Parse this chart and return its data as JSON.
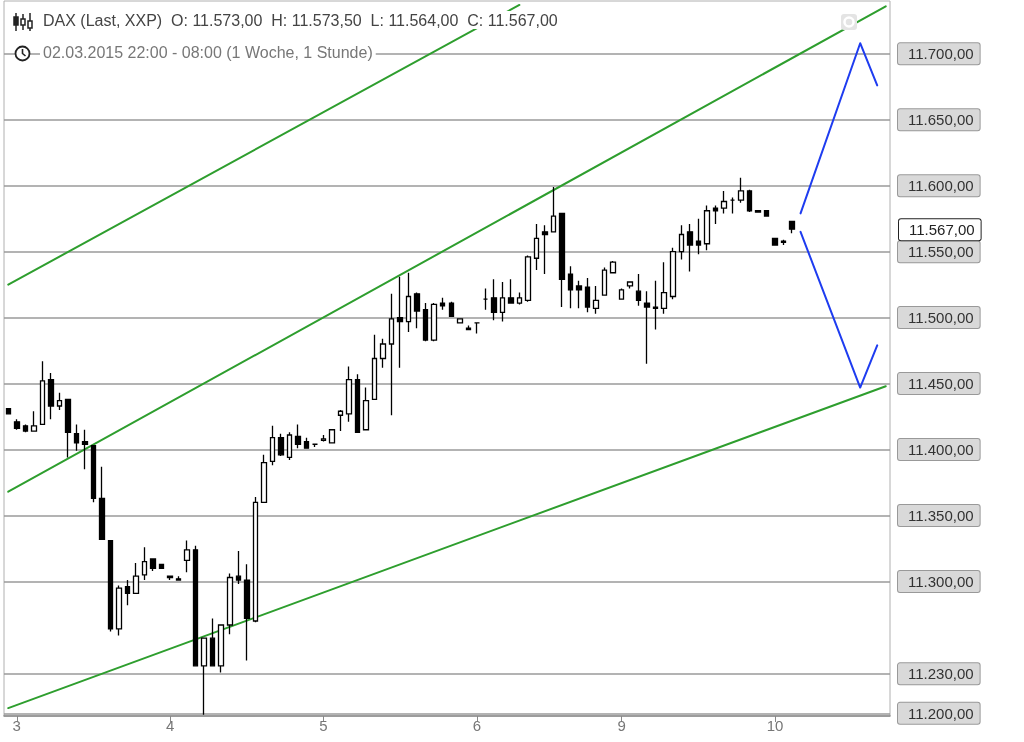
{
  "chart_data": {
    "type": "candlestick",
    "title": "DAX (Last, XXP)  O: 11.573,00  H: 11.573,50  L: 11.564,00  C: 11.567,00",
    "subtitle": "02.03.2015 22:00 - 08:00 (1 Woche, 1 Stunde)",
    "categories": [
      null,
      "3",
      null,
      null,
      null,
      null,
      null,
      null,
      null,
      null,
      null,
      null,
      null,
      null,
      null,
      null,
      null,
      null,
      null,
      "4",
      null,
      null,
      null,
      null,
      null,
      null,
      null,
      null,
      null,
      null,
      null,
      null,
      null,
      null,
      null,
      null,
      null,
      "5",
      null,
      null,
      null,
      null,
      null,
      null,
      null,
      null,
      null,
      null,
      null,
      null,
      null,
      null,
      null,
      null,
      null,
      "6",
      null,
      null,
      null,
      null,
      null,
      null,
      null,
      null,
      null,
      null,
      null,
      null,
      null,
      null,
      null,
      null,
      "9",
      null,
      null,
      null,
      null,
      null,
      null,
      null,
      null,
      null,
      null,
      null,
      null,
      null,
      null,
      null,
      null,
      null,
      "10",
      null,
      null,
      null,
      null,
      null,
      null,
      null,
      null,
      null,
      null,
      null,
      null,
      null
    ],
    "color": "#000000",
    "ohlc": [
      [
        11431,
        11431,
        11427,
        11427
      ],
      [
        11421,
        11423,
        11415,
        11416
      ],
      [
        11418,
        11419,
        11413,
        11414
      ],
      [
        11414,
        11429,
        11414,
        11418
      ],
      [
        11419,
        11467,
        11419,
        11452
      ],
      [
        11453,
        11458,
        11423,
        11433
      ],
      [
        11433,
        11443,
        11430,
        11437
      ],
      [
        11438,
        11438,
        11394,
        11413
      ],
      [
        11412,
        11419,
        11399,
        11405
      ],
      [
        11406,
        11415,
        11385,
        11404
      ],
      [
        11403,
        11403,
        11360,
        11363
      ],
      [
        11363,
        11387,
        11332,
        11332
      ],
      [
        11331,
        11331,
        11262,
        11264
      ],
      [
        11264,
        11297,
        11259,
        11295
      ],
      [
        11296,
        11301,
        11282,
        11291
      ],
      [
        11291,
        11314,
        11291,
        11304
      ],
      [
        11305,
        11326,
        11301,
        11315
      ],
      [
        11317,
        11317,
        11308,
        11310
      ],
      [
        11313,
        11313,
        11310,
        11310
      ],
      [
        11303,
        11304,
        11301,
        11304
      ],
      [
        11302,
        11304,
        11301,
        11301
      ],
      [
        11316,
        11331,
        11307,
        11324
      ],
      [
        11324,
        11327,
        11236,
        11236
      ],
      [
        11236,
        11257,
        11199,
        11257
      ],
      [
        11257,
        11272,
        11236,
        11236
      ],
      [
        11236,
        11267,
        11231,
        11267
      ],
      [
        11267,
        11306,
        11260,
        11303
      ],
      [
        11304,
        11323,
        11298,
        11301
      ],
      [
        11301,
        11313,
        11240,
        11272
      ],
      [
        11270,
        11364,
        11269,
        11360
      ],
      [
        11360,
        11396,
        11360,
        11390
      ],
      [
        11391,
        11418,
        11388,
        11409
      ],
      [
        11409,
        11412,
        11395,
        11396
      ],
      [
        11394,
        11413,
        11392,
        11411
      ],
      [
        11410,
        11419,
        11401,
        11404
      ],
      [
        11406,
        11409,
        11401,
        11401
      ],
      [
        11404,
        11404,
        11402,
        11404
      ],
      [
        11407,
        11411,
        11406,
        11408
      ],
      [
        11405,
        11415,
        11405,
        11415
      ],
      [
        11426,
        11430,
        11414,
        11429
      ],
      [
        11427,
        11463,
        11421,
        11453
      ],
      [
        11453,
        11457,
        11413,
        11413
      ],
      [
        11415,
        11447,
        11415,
        11437
      ],
      [
        11438,
        11487,
        11438,
        11469
      ],
      [
        11469,
        11484,
        11462,
        11480
      ],
      [
        11480,
        11518,
        11426,
        11499
      ],
      [
        11500,
        11531,
        11462,
        11497
      ],
      [
        11497,
        11534,
        11489,
        11516
      ],
      [
        11518,
        11519,
        11492,
        11505
      ],
      [
        11506,
        11511,
        11482,
        11483
      ],
      [
        11483,
        11511,
        11482,
        11510
      ],
      [
        11511,
        11515,
        11506,
        11509
      ],
      [
        11511,
        11512,
        11501,
        11501
      ],
      [
        11496,
        11499,
        11496,
        11499
      ],
      [
        11492,
        11494,
        11491,
        11491
      ],
      [
        11496,
        11496,
        11488,
        11496
      ],
      [
        11514,
        11522,
        11506,
        11514
      ],
      [
        11515,
        11529,
        11498,
        11504
      ],
      [
        11504,
        11527,
        11497,
        11515
      ],
      [
        11515,
        11529,
        11511,
        11511
      ],
      [
        11511,
        11519,
        11510,
        11515
      ],
      [
        11513,
        11547,
        11512,
        11546
      ],
      [
        11545,
        11571,
        11536,
        11560
      ],
      [
        11565,
        11570,
        11533,
        11563
      ],
      [
        11565,
        11599,
        11565,
        11577
      ],
      [
        11579,
        11579,
        11508,
        11529
      ],
      [
        11533,
        11539,
        11507,
        11521
      ],
      [
        11524,
        11528,
        11507,
        11521
      ],
      [
        11523,
        11530,
        11504,
        11508
      ],
      [
        11507,
        11524,
        11503,
        11513
      ],
      [
        11517,
        11538,
        11517,
        11536
      ],
      [
        11534,
        11543,
        11534,
        11542
      ],
      [
        11514,
        11522,
        11514,
        11521
      ],
      [
        11524,
        11527,
        11522,
        11527
      ],
      [
        11520,
        11533,
        11509,
        11513
      ],
      [
        11511,
        11520,
        11465,
        11508
      ],
      [
        11508,
        11528,
        11491,
        11507
      ],
      [
        11507,
        11542,
        11503,
        11519
      ],
      [
        11516,
        11553,
        11514,
        11550
      ],
      [
        11550,
        11570,
        11544,
        11563
      ],
      [
        11565,
        11571,
        11535,
        11555
      ],
      [
        11558,
        11575,
        11548,
        11555
      ],
      [
        11556,
        11585,
        11551,
        11581
      ],
      [
        11583,
        11585,
        11571,
        11581
      ],
      [
        11583,
        11596,
        11579,
        11588
      ],
      [
        11589,
        11591,
        11579,
        11589
      ],
      [
        11589,
        11606,
        11587,
        11596
      ],
      [
        11596,
        11597,
        11580,
        11581
      ],
      [
        11581,
        11581,
        11580,
        11580
      ],
      [
        11581,
        11581,
        11577,
        11577
      ],
      [
        11560,
        11560,
        11555,
        11555
      ],
      [
        11557,
        11559,
        11555,
        11558
      ],
      [
        11573,
        11573.5,
        11564,
        11567
      ],
      null,
      null,
      null,
      null,
      null,
      null,
      null,
      null,
      null,
      null,
      null
    ],
    "series": [
      {
        "type": "line",
        "color": "#2e9e2e",
        "values": [
          11525,
          null,
          null,
          null,
          null,
          null,
          null,
          null,
          null,
          null,
          null,
          null,
          null,
          null,
          null,
          null,
          null,
          null,
          null,
          null,
          null,
          null,
          null,
          null,
          null,
          null,
          null,
          null,
          null,
          null,
          null,
          null,
          null,
          null,
          null,
          null,
          null,
          null,
          null,
          null,
          null,
          null,
          null,
          null,
          null,
          null,
          null,
          null,
          null,
          null,
          null,
          null,
          null,
          null,
          null,
          null,
          null,
          null,
          null,
          null,
          11737,
          null,
          null,
          null,
          null,
          null,
          null,
          null,
          null,
          null,
          null,
          null,
          null,
          null,
          null,
          null,
          null,
          null,
          null,
          null,
          null,
          null,
          null,
          null,
          null,
          null,
          null,
          null,
          null,
          null,
          null,
          null,
          null,
          null,
          null,
          null,
          null,
          null,
          null,
          null,
          null,
          null,
          null,
          null
        ]
      },
      {
        "type": "line",
        "color": "#2e9e2e",
        "values": [
          11368,
          null,
          null,
          null,
          null,
          null,
          null,
          null,
          null,
          null,
          null,
          null,
          null,
          null,
          null,
          null,
          null,
          null,
          null,
          null,
          null,
          null,
          null,
          null,
          null,
          null,
          null,
          null,
          null,
          null,
          null,
          null,
          null,
          null,
          null,
          null,
          null,
          null,
          null,
          null,
          null,
          null,
          null,
          null,
          null,
          null,
          null,
          null,
          null,
          null,
          null,
          null,
          null,
          null,
          null,
          null,
          null,
          null,
          null,
          null,
          null,
          null,
          null,
          null,
          null,
          null,
          null,
          null,
          null,
          null,
          null,
          null,
          null,
          null,
          null,
          null,
          null,
          null,
          null,
          null,
          null,
          null,
          null,
          null,
          null,
          null,
          null,
          null,
          null,
          null,
          null,
          null,
          null,
          null,
          null,
          null,
          null,
          null,
          null,
          null,
          null,
          null,
          null,
          11736
        ]
      },
      {
        "type": "line",
        "color": "#2e9e2e",
        "values": [
          11204,
          null,
          null,
          null,
          null,
          null,
          null,
          null,
          null,
          null,
          null,
          null,
          null,
          null,
          null,
          null,
          null,
          null,
          null,
          null,
          null,
          null,
          null,
          null,
          null,
          null,
          null,
          null,
          null,
          null,
          null,
          null,
          null,
          null,
          null,
          null,
          null,
          null,
          null,
          null,
          null,
          null,
          null,
          null,
          null,
          null,
          null,
          null,
          null,
          null,
          null,
          null,
          null,
          null,
          null,
          null,
          null,
          null,
          null,
          null,
          null,
          null,
          null,
          null,
          null,
          null,
          null,
          null,
          null,
          null,
          null,
          null,
          null,
          null,
          null,
          null,
          null,
          null,
          null,
          null,
          null,
          null,
          null,
          null,
          null,
          null,
          null,
          null,
          null,
          null,
          null,
          null,
          null,
          null,
          null,
          null,
          null,
          null,
          null,
          null,
          null,
          null,
          null,
          11448
        ]
      },
      {
        "type": "line",
        "color": "#1e3cf0",
        "values": [
          null,
          null,
          null,
          null,
          null,
          null,
          null,
          null,
          null,
          null,
          null,
          null,
          null,
          null,
          null,
          null,
          null,
          null,
          null,
          null,
          null,
          null,
          null,
          null,
          null,
          null,
          null,
          null,
          null,
          null,
          null,
          null,
          null,
          null,
          null,
          null,
          null,
          null,
          null,
          null,
          null,
          null,
          null,
          null,
          null,
          null,
          null,
          null,
          null,
          null,
          null,
          null,
          null,
          null,
          null,
          null,
          null,
          null,
          null,
          null,
          null,
          null,
          null,
          null,
          null,
          null,
          null,
          null,
          null,
          null,
          null,
          null,
          null,
          null,
          null,
          null,
          null,
          null,
          null,
          null,
          null,
          null,
          null,
          null,
          null,
          null,
          null,
          null,
          null,
          null,
          null,
          null,
          null,
          11579,
          null,
          null,
          null,
          null,
          null,
          null,
          11708,
          null,
          11676,
          null
        ]
      },
      {
        "type": "line",
        "color": "#1e3cf0",
        "values": [
          null,
          null,
          null,
          null,
          null,
          null,
          null,
          null,
          null,
          null,
          null,
          null,
          null,
          null,
          null,
          null,
          null,
          null,
          null,
          null,
          null,
          null,
          null,
          null,
          null,
          null,
          null,
          null,
          null,
          null,
          null,
          null,
          null,
          null,
          null,
          null,
          null,
          null,
          null,
          null,
          null,
          null,
          null,
          null,
          null,
          null,
          null,
          null,
          null,
          null,
          null,
          null,
          null,
          null,
          null,
          null,
          null,
          null,
          null,
          null,
          null,
          null,
          null,
          null,
          null,
          null,
          null,
          null,
          null,
          null,
          null,
          null,
          null,
          null,
          null,
          null,
          null,
          null,
          null,
          null,
          null,
          null,
          null,
          null,
          null,
          null,
          null,
          null,
          null,
          null,
          null,
          null,
          null,
          11565,
          null,
          null,
          null,
          null,
          null,
          null,
          11447,
          null,
          11479,
          null
        ]
      }
    ],
    "ylim": [
      11198,
      11740
    ],
    "yticks": [
      {
        "value": 11200,
        "label": "11.200,00"
      },
      {
        "value": 11230,
        "label": "11.230,00"
      },
      {
        "value": 11300,
        "label": "11.300,00"
      },
      {
        "value": 11350,
        "label": "11.350,00"
      },
      {
        "value": 11400,
        "label": "11.400,00"
      },
      {
        "value": 11450,
        "label": "11.450,00"
      },
      {
        "value": 11500,
        "label": "11.500,00"
      },
      {
        "value": 11550,
        "label": "11.550,00"
      },
      {
        "value": 11600,
        "label": "11.600,00"
      },
      {
        "value": 11650,
        "label": "11.650,00"
      },
      {
        "value": 11700,
        "label": "11.700,00"
      }
    ],
    "annotations": [
      "11.567,00"
    ],
    "grid": "y",
    "marker": "none"
  }
}
